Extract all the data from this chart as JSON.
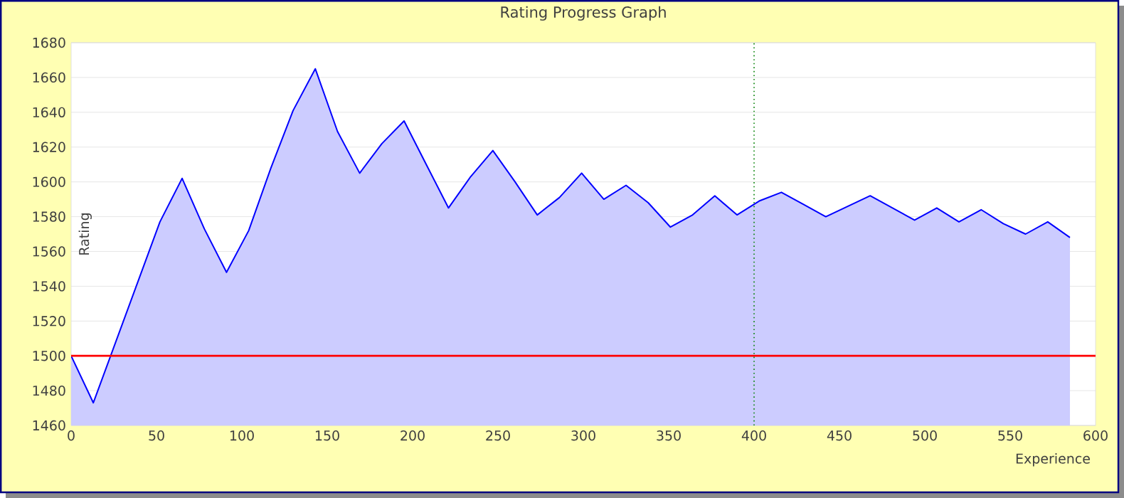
{
  "chart_data": {
    "type": "area",
    "title": "Rating Progress Graph",
    "xlabel": "Experience",
    "ylabel": "Rating",
    "x": [
      0,
      13,
      52,
      65,
      78,
      91,
      104,
      117,
      130,
      143,
      156,
      169,
      182,
      195,
      208,
      221,
      234,
      247,
      260,
      273,
      286,
      299,
      312,
      325,
      338,
      351,
      364,
      377,
      390,
      403,
      416,
      429,
      442,
      455,
      468,
      481,
      494,
      507,
      520,
      533,
      546,
      559,
      572,
      585
    ],
    "series": [
      {
        "color": "#0000ff",
        "values": [
          1500,
          1473,
          1577,
          1602,
          1573,
          1548,
          1572,
          1608,
          1641,
          1665,
          1629,
          1605,
          1622,
          1635,
          1610,
          1585,
          1603,
          1618,
          1600,
          1581,
          1591,
          1605,
          1590,
          1598,
          1588,
          1574,
          1581,
          1592,
          1581,
          1589,
          1594,
          1587,
          1580,
          1586,
          1592,
          1585,
          1578,
          1585,
          1577,
          1584,
          1576,
          1570,
          1577,
          1568
        ]
      }
    ],
    "xlim": [
      0,
      600
    ],
    "ylim": [
      1460,
      1680
    ],
    "xticks": [
      0,
      50,
      100,
      150,
      200,
      250,
      300,
      350,
      400,
      450,
      500,
      550,
      600
    ],
    "yticks": [
      1460,
      1480,
      1500,
      1520,
      1540,
      1560,
      1580,
      1600,
      1620,
      1640,
      1660,
      1680
    ],
    "grid": "y",
    "ref_lines": [
      {
        "axis": "y",
        "value": 1500,
        "color": "#ff0000",
        "line_style": "solid"
      },
      {
        "axis": "x",
        "value": 400,
        "color": "#008000",
        "line_style": "dotted"
      }
    ]
  }
}
